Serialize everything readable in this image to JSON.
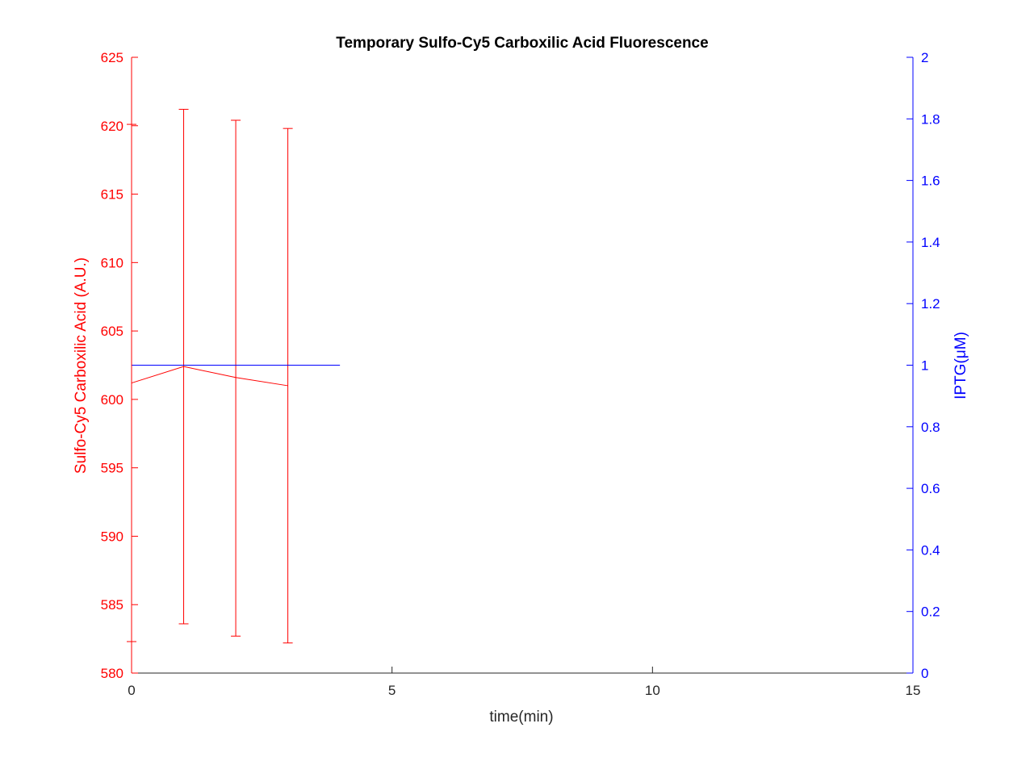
{
  "chart_data": {
    "type": "line",
    "title": "Temporary Sulfo-Cy5 Carboxilic Acid Fluorescence",
    "xlabel": "time(min)",
    "ylabel_left": "Sulfo-Cy5 Carboxilic Acid (A.U.)",
    "ylabel_right": "IPTG(μM)",
    "xlim": [
      0,
      15
    ],
    "ylim_left": [
      580,
      625
    ],
    "ylim_right": [
      0,
      2
    ],
    "x_ticks": [
      "0",
      "5",
      "10",
      "15"
    ],
    "y_left_ticks": [
      "580",
      "585",
      "590",
      "595",
      "600",
      "605",
      "610",
      "615",
      "620",
      "625"
    ],
    "y_right_ticks": [
      "0",
      "0.2",
      "0.4",
      "0.6",
      "0.8",
      "1",
      "1.2",
      "1.4",
      "1.6",
      "1.8",
      "2"
    ],
    "grid": false,
    "series": [
      {
        "axis": "left",
        "color": "#ff0000",
        "x": [
          0,
          1,
          2,
          3
        ],
        "y": [
          601.2,
          602.4,
          601.6,
          601.0
        ],
        "err_low": [
          582.3,
          583.6,
          582.7,
          582.2
        ],
        "err_high": [
          620.1,
          621.2,
          620.4,
          619.8
        ]
      },
      {
        "axis": "right",
        "color": "#0000ff",
        "x": [
          0,
          4
        ],
        "y": [
          1,
          1
        ]
      }
    ]
  }
}
